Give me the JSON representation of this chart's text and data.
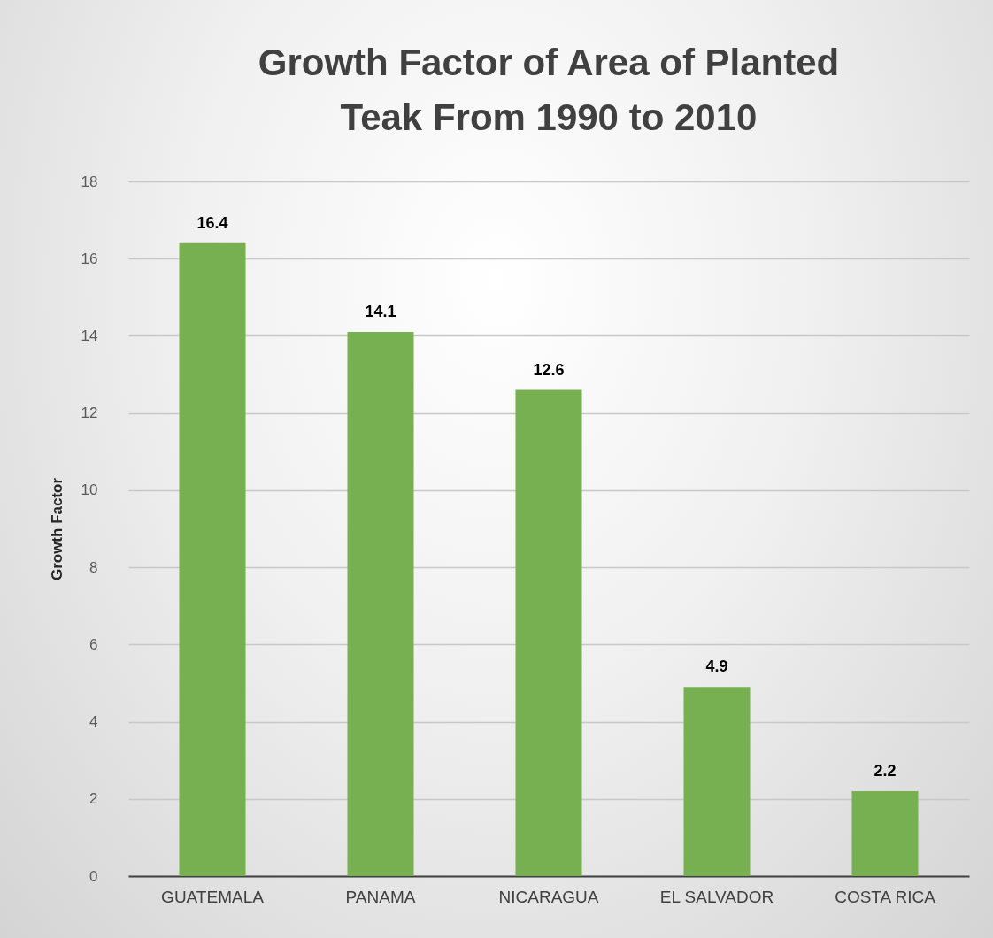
{
  "chart_data": {
    "type": "bar",
    "title": "Growth Factor of Area of Planted Teak From 1990 to 2010",
    "ylabel": "Growth Factor",
    "categories": [
      "GUATEMALA",
      "PANAMA",
      "NICARAGUA",
      "EL SALVADOR",
      "COSTA RICA"
    ],
    "values": [
      16.4,
      14.1,
      12.6,
      4.9,
      2.2
    ],
    "color": "#77b050",
    "ylim": [
      0,
      18
    ],
    "yticks": [
      0,
      2,
      4,
      6,
      8,
      10,
      12,
      14,
      16,
      18
    ],
    "grid": "y",
    "data_labels": true
  }
}
